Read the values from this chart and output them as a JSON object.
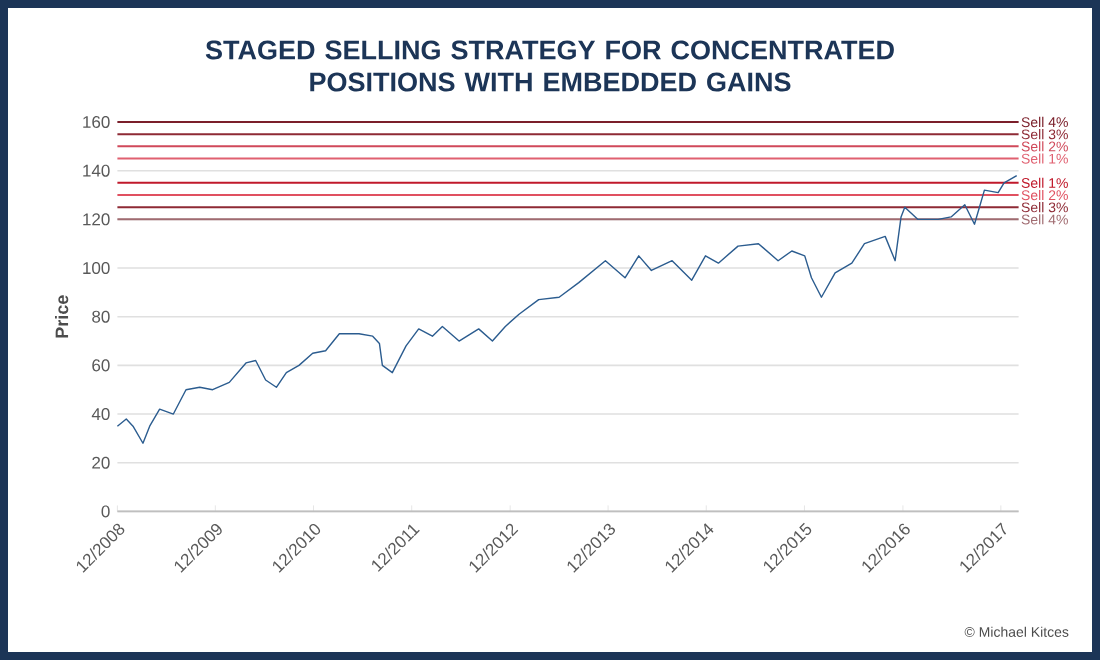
{
  "chart_data": {
    "type": "line",
    "title": "STAGED SELLING STRATEGY FOR CONCENTRATED POSITIONS WITH EMBEDDED GAINS",
    "ylabel": "Price",
    "series": [
      {
        "color": "#2b5c8f",
        "x": [
          "2008-12-01",
          "2009-01-04",
          "2009-01-29",
          "2009-03-07",
          "2009-04-01",
          "2009-05-08",
          "2009-06-28",
          "2009-08-14",
          "2009-10-04",
          "2009-11-21",
          "2010-01-22",
          "2010-03-25",
          "2010-04-30",
          "2010-06-06",
          "2010-07-16",
          "2010-08-22",
          "2010-10-08",
          "2010-11-28",
          "2011-01-15",
          "2011-03-07",
          "2011-05-19",
          "2011-07-09",
          "2011-08-03",
          "2011-08-14",
          "2011-09-20",
          "2011-11-10",
          "2011-12-27",
          "2012-02-16",
          "2012-03-24",
          "2012-05-25",
          "2012-08-06",
          "2012-09-26",
          "2012-11-13",
          "2013-01-04",
          "2013-03-18",
          "2013-06-02",
          "2013-08-14",
          "2013-11-21",
          "2014-02-02",
          "2014-03-25",
          "2014-05-11",
          "2014-07-27",
          "2014-10-08",
          "2014-11-28",
          "2015-01-15",
          "2015-03-29",
          "2015-06-13",
          "2015-08-25",
          "2015-10-15",
          "2015-12-02",
          "2015-12-27",
          "2016-02-02",
          "2016-03-24",
          "2016-05-25",
          "2016-07-11",
          "2016-09-26",
          "2016-11-02",
          "2016-11-24",
          "2016-12-08",
          "2017-01-26",
          "2017-04-12",
          "2017-05-30",
          "2017-07-20",
          "2017-08-25",
          "2017-10-01",
          "2017-11-21",
          "2017-12-13",
          "2018-01-29"
        ],
        "values": [
          35,
          38,
          35,
          28,
          35,
          42,
          40,
          50,
          51,
          50,
          53,
          61,
          62,
          54,
          51,
          57,
          60,
          65,
          66,
          73,
          73,
          72,
          69,
          60,
          57,
          68,
          75,
          72,
          76,
          70,
          75,
          70,
          76,
          81,
          87,
          88,
          94,
          103,
          96,
          105,
          99,
          103,
          95,
          105,
          102,
          109,
          110,
          103,
          107,
          105,
          96,
          88,
          98,
          102,
          110,
          113,
          103,
          121,
          125,
          120,
          120,
          121,
          126,
          118,
          132,
          131,
          135,
          138
        ]
      }
    ],
    "xlim": [
      "2008-12-01",
      "2018-02-05"
    ],
    "xticks": [
      {
        "value": "2008-12-01",
        "label": "12/2008"
      },
      {
        "value": "2009-12-01",
        "label": "12/2009"
      },
      {
        "value": "2010-12-01",
        "label": "12/2010"
      },
      {
        "value": "2011-12-01",
        "label": "12/2011"
      },
      {
        "value": "2012-12-01",
        "label": "12/2012"
      },
      {
        "value": "2013-12-01",
        "label": "12/2013"
      },
      {
        "value": "2014-12-01",
        "label": "12/2014"
      },
      {
        "value": "2015-12-01",
        "label": "12/2015"
      },
      {
        "value": "2016-12-01",
        "label": "12/2016"
      },
      {
        "value": "2017-12-01",
        "label": "12/2017"
      }
    ],
    "ylim": [
      0,
      160
    ],
    "yticks": [
      0,
      20,
      40,
      60,
      80,
      100,
      120,
      140,
      160
    ],
    "grid": "y",
    "ref_lines": [
      {
        "axis": "y",
        "value": 160,
        "label": "Sell 4%",
        "color": "#7b1f2a"
      },
      {
        "axis": "y",
        "value": 155,
        "label": "Sell 3%",
        "color": "#8e2a35"
      },
      {
        "axis": "y",
        "value": 150,
        "label": "Sell 2%",
        "color": "#d0495a"
      },
      {
        "axis": "y",
        "value": 145,
        "label": "Sell 1%",
        "color": "#e06070"
      },
      {
        "axis": "y",
        "value": 135,
        "label": "Sell 1%",
        "color": "#c0192b"
      },
      {
        "axis": "y",
        "value": 130,
        "label": "Sell 2%",
        "color": "#e05060"
      },
      {
        "axis": "y",
        "value": 125,
        "label": "Sell 3%",
        "color": "#8e2a35"
      },
      {
        "axis": "y",
        "value": 120,
        "label": "Sell 4%",
        "color": "#a06b70"
      }
    ],
    "annotations": [
      "© Michael Kitces"
    ]
  }
}
